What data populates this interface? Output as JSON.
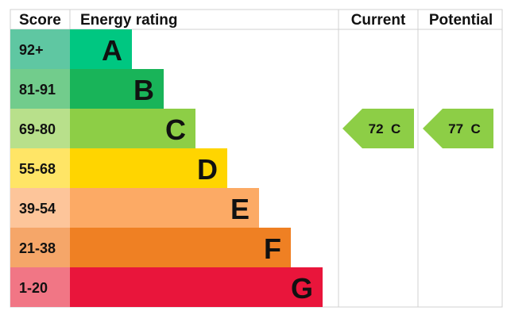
{
  "chart_data": {
    "type": "bar",
    "headers": {
      "score": "Score",
      "rating": "Energy rating",
      "current": "Current",
      "potential": "Potential"
    },
    "bands": [
      {
        "letter": "A",
        "range": "92+",
        "color": "#00c781",
        "light": "#5fc7a2"
      },
      {
        "letter": "B",
        "range": "81-91",
        "color": "#19b459",
        "light": "#72cc8c"
      },
      {
        "letter": "C",
        "range": "69-80",
        "color": "#8dce46",
        "light": "#b8e08b"
      },
      {
        "letter": "D",
        "range": "55-68",
        "color": "#ffd500",
        "light": "#ffe566"
      },
      {
        "letter": "E",
        "range": "39-54",
        "color": "#fcaa65",
        "light": "#fdc59a"
      },
      {
        "letter": "F",
        "range": "21-38",
        "color": "#ef8023",
        "light": "#f5a669"
      },
      {
        "letter": "G",
        "range": "1-20",
        "color": "#e9153b",
        "light": "#f17685"
      }
    ],
    "current": {
      "value": 72,
      "band": "C",
      "label": "72  C"
    },
    "potential": {
      "value": 77,
      "band": "C",
      "label": "77  C"
    }
  }
}
